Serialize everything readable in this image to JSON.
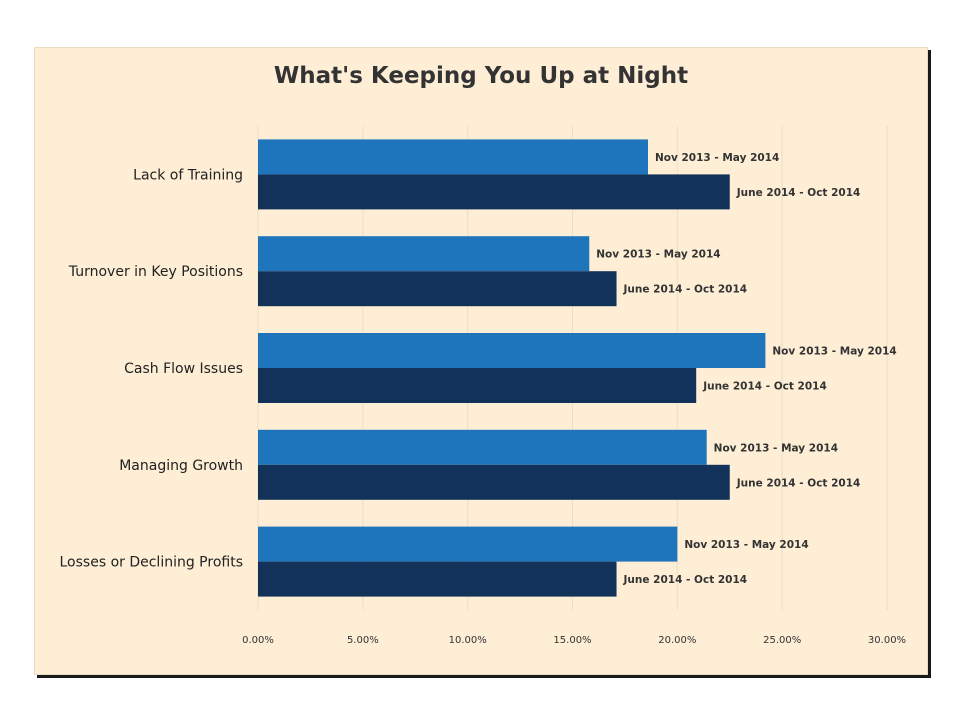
{
  "chart_data": {
    "type": "bar",
    "orientation": "horizontal",
    "title": "What's Keeping You Up at Night",
    "categories": [
      "Lack of Training",
      "Turnover in Key Positions",
      "Cash Flow Issues",
      "Managing Growth",
      "Losses or Declining Profits"
    ],
    "series": [
      {
        "name": "Nov 2013 - May 2014",
        "color": "#1f75bc",
        "values": [
          18.6,
          15.8,
          24.2,
          21.4,
          20.0
        ]
      },
      {
        "name": "June 2014 - Oct 2014",
        "color": "#13325a",
        "values": [
          22.5,
          17.1,
          20.9,
          22.5,
          17.1
        ]
      }
    ],
    "x_ticks": [
      "0.00%",
      "5.00%",
      "10.00%",
      "15.00%",
      "20.00%",
      "25.00%",
      "30.00%"
    ],
    "xlim": [
      0,
      30
    ],
    "xlabel": "",
    "ylabel": "",
    "grid": true,
    "legend": "none",
    "background": "#fdeed5"
  }
}
